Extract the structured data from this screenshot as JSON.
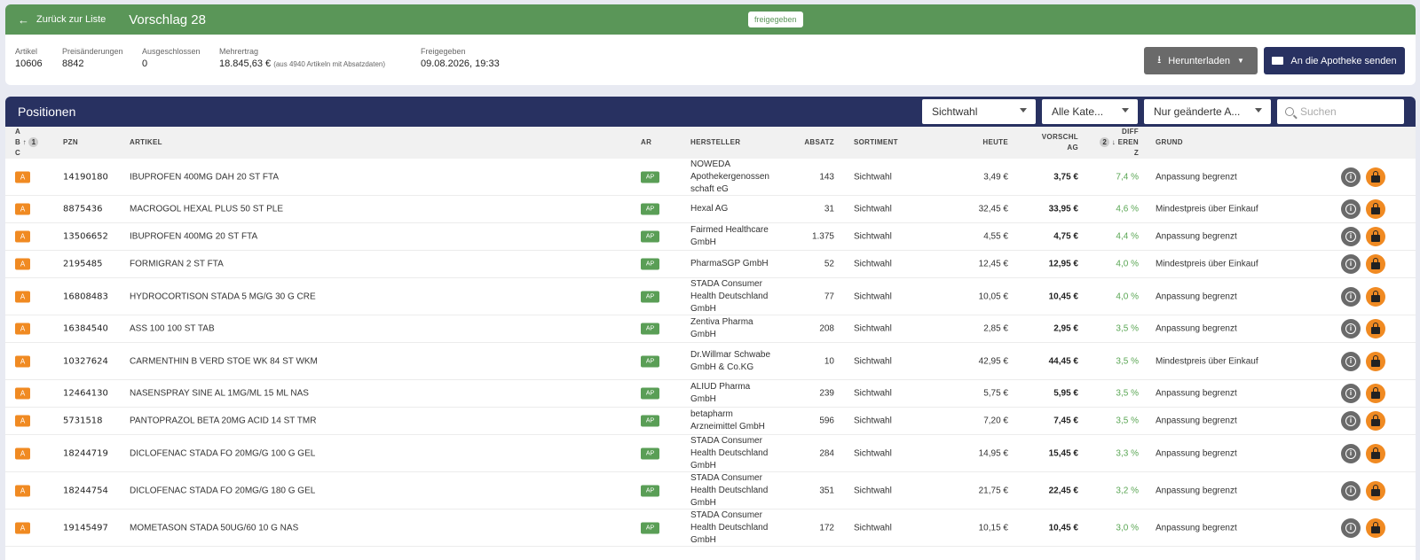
{
  "topbar": {
    "back_label": "Zurück zur Liste",
    "title": "Vorschlag 28",
    "status": "freigegeben"
  },
  "info": {
    "artikel": {
      "label": "Artikel",
      "value": "10606"
    },
    "preis": {
      "label": "Preisänderungen",
      "value": "8842"
    },
    "ausgeschlossen": {
      "label": "Ausgeschlossen",
      "value": "0"
    },
    "mehrertrag": {
      "label": "Mehrertrag",
      "value": "18.845,63 €",
      "note": "(aus 4940 Artikeln mit Absatzdaten)"
    },
    "freigegeben": {
      "label": "Freigegeben",
      "value": "09.08.2026, 19:33"
    }
  },
  "buttons": {
    "download": "Herunterladen",
    "send": "An die Apotheke senden"
  },
  "panel": {
    "title": "Positionen",
    "filter_sortiment": "Sichtwahl",
    "filter_kategorie": "Alle Kate...",
    "filter_changes": "Nur geänderte A...",
    "search_placeholder": "Suchen"
  },
  "columns": {
    "abc_a": "A",
    "abc_b": "B",
    "abc_c": "C",
    "abc_sort": "1",
    "pzn": "PZN",
    "artikel": "ARTIKEL",
    "ar": "AR",
    "hersteller": "HERSTELLER",
    "absatz": "ABSATZ",
    "sortiment": "SORTIMENT",
    "heute": "HEUTE",
    "vorschlag_1": "VORSCHL",
    "vorschlag_2": "AG",
    "diff_sort": "2",
    "diff_1": "DIFF",
    "diff_2": "EREN",
    "diff_3": "Z",
    "grund": "GRUND"
  },
  "rows": [
    {
      "abc": "A",
      "pzn": "14190180",
      "artikel": "IBUPROFEN 400MG DAH 20 ST FTA",
      "ar": "AP",
      "hersteller": "NOWEDA Apothekergenossen schaft eG",
      "absatz": "143",
      "sortiment": "Sichtwahl",
      "heute": "3,49 €",
      "vorschlag": "3,75 €",
      "diff": "7,4 %",
      "grund": "Anpassung begrenzt"
    },
    {
      "abc": "A",
      "pzn": "8875436",
      "artikel": "MACROGOL HEXAL PLUS 50 ST PLE",
      "ar": "AP",
      "hersteller": "Hexal AG",
      "absatz": "31",
      "sortiment": "Sichtwahl",
      "heute": "32,45 €",
      "vorschlag": "33,95 €",
      "diff": "4,6 %",
      "grund": "Mindestpreis über Einkauf"
    },
    {
      "abc": "A",
      "pzn": "13506652",
      "artikel": "IBUPROFEN 400MG 20 ST FTA",
      "ar": "AP",
      "hersteller": "Fairmed Healthcare GmbH",
      "absatz": "1.375",
      "sortiment": "Sichtwahl",
      "heute": "4,55 €",
      "vorschlag": "4,75 €",
      "diff": "4,4 %",
      "grund": "Anpassung begrenzt"
    },
    {
      "abc": "A",
      "pzn": "2195485",
      "artikel": "FORMIGRAN 2 ST FTA",
      "ar": "AP",
      "hersteller": "PharmaSGP GmbH",
      "absatz": "52",
      "sortiment": "Sichtwahl",
      "heute": "12,45 €",
      "vorschlag": "12,95 €",
      "diff": "4,0 %",
      "grund": "Mindestpreis über Einkauf"
    },
    {
      "abc": "A",
      "pzn": "16808483",
      "artikel": "HYDROCORTISON STADA 5 MG/G 30 G CRE",
      "ar": "AP",
      "hersteller": "STADA Consumer Health Deutschland GmbH",
      "absatz": "77",
      "sortiment": "Sichtwahl",
      "heute": "10,05 €",
      "vorschlag": "10,45 €",
      "diff": "4,0 %",
      "grund": "Anpassung begrenzt"
    },
    {
      "abc": "A",
      "pzn": "16384540",
      "artikel": "ASS 100 100 ST TAB",
      "ar": "AP",
      "hersteller": "Zentiva Pharma GmbH",
      "absatz": "208",
      "sortiment": "Sichtwahl",
      "heute": "2,85 €",
      "vorschlag": "2,95 €",
      "diff": "3,5 %",
      "grund": "Anpassung begrenzt"
    },
    {
      "abc": "A",
      "pzn": "10327624",
      "artikel": "CARMENTHIN B VERD STOE WK 84 ST WKM",
      "ar": "AP",
      "hersteller": "Dr.Willmar Schwabe GmbH & Co.KG",
      "absatz": "10",
      "sortiment": "Sichtwahl",
      "heute": "42,95 €",
      "vorschlag": "44,45 €",
      "diff": "3,5 %",
      "grund": "Mindestpreis über Einkauf"
    },
    {
      "abc": "A",
      "pzn": "12464130",
      "artikel": "NASENSPRAY SINE AL 1MG/ML 15 ML NAS",
      "ar": "AP",
      "hersteller": "ALIUD Pharma GmbH",
      "absatz": "239",
      "sortiment": "Sichtwahl",
      "heute": "5,75 €",
      "vorschlag": "5,95 €",
      "diff": "3,5 %",
      "grund": "Anpassung begrenzt"
    },
    {
      "abc": "A",
      "pzn": "5731518",
      "artikel": "PANTOPRAZOL BETA 20MG ACID 14 ST TMR",
      "ar": "AP",
      "hersteller": "betapharm Arzneimittel GmbH",
      "absatz": "596",
      "sortiment": "Sichtwahl",
      "heute": "7,20 €",
      "vorschlag": "7,45 €",
      "diff": "3,5 %",
      "grund": "Anpassung begrenzt"
    },
    {
      "abc": "A",
      "pzn": "18244719",
      "artikel": "DICLOFENAC STADA FO 20MG/G 100 G GEL",
      "ar": "AP",
      "hersteller": "STADA Consumer Health Deutschland GmbH",
      "absatz": "284",
      "sortiment": "Sichtwahl",
      "heute": "14,95 €",
      "vorschlag": "15,45 €",
      "diff": "3,3 %",
      "grund": "Anpassung begrenzt"
    },
    {
      "abc": "A",
      "pzn": "18244754",
      "artikel": "DICLOFENAC STADA FO 20MG/G 180 G GEL",
      "ar": "AP",
      "hersteller": "STADA Consumer Health Deutschland GmbH",
      "absatz": "351",
      "sortiment": "Sichtwahl",
      "heute": "21,75 €",
      "vorschlag": "22,45 €",
      "diff": "3,2 %",
      "grund": "Anpassung begrenzt"
    },
    {
      "abc": "A",
      "pzn": "19145497",
      "artikel": "MOMETASON STADA 50UG/60 10 G NAS",
      "ar": "AP",
      "hersteller": "STADA Consumer Health Deutschland GmbH",
      "absatz": "172",
      "sortiment": "Sichtwahl",
      "heute": "10,15 €",
      "vorschlag": "10,45 €",
      "diff": "3,0 %",
      "grund": "Anpassung begrenzt"
    }
  ]
}
